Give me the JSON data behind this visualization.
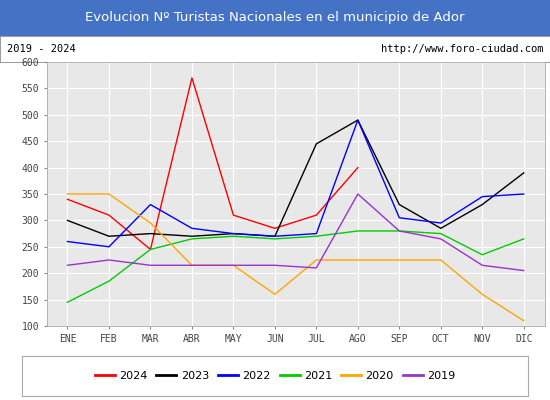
{
  "title": "Evolucion Nº Turistas Nacionales en el municipio de Ador",
  "subtitle_left": "2019 - 2024",
  "subtitle_right": "http://www.foro-ciudad.com",
  "title_bg_color": "#4472c4",
  "title_text_color": "#ffffff",
  "subtitle_bg_color": "#ffffff",
  "plot_bg_color": "#e8e8e8",
  "months": [
    "ENE",
    "FEB",
    "MAR",
    "ABR",
    "MAY",
    "JUN",
    "JUL",
    "AGO",
    "SEP",
    "OCT",
    "NOV",
    "DIC"
  ],
  "ylim": [
    100,
    600
  ],
  "yticks": [
    100,
    150,
    200,
    250,
    300,
    350,
    400,
    450,
    500,
    550,
    600
  ],
  "series": {
    "2024": {
      "color": "#ff0000",
      "data": [
        340,
        310,
        245,
        570,
        310,
        285,
        310,
        400,
        null,
        null,
        null,
        null
      ]
    },
    "2023": {
      "color": "#000000",
      "data": [
        300,
        270,
        275,
        270,
        275,
        270,
        445,
        490,
        330,
        285,
        330,
        390
      ]
    },
    "2022": {
      "color": "#0000ff",
      "data": [
        260,
        250,
        330,
        285,
        275,
        270,
        275,
        490,
        305,
        295,
        345,
        350
      ]
    },
    "2021": {
      "color": "#00cc00",
      "data": [
        145,
        185,
        245,
        265,
        270,
        265,
        270,
        280,
        280,
        275,
        235,
        265
      ]
    },
    "2020": {
      "color": "#ffa500",
      "data": [
        350,
        350,
        295,
        215,
        215,
        160,
        225,
        225,
        225,
        225,
        160,
        110
      ]
    },
    "2019": {
      "color": "#9933cc",
      "data": [
        215,
        225,
        215,
        215,
        215,
        215,
        210,
        350,
        280,
        265,
        215,
        205
      ]
    }
  },
  "legend_order": [
    "2024",
    "2023",
    "2022",
    "2021",
    "2020",
    "2019"
  ],
  "grid_color": "#ffffff",
  "tick_color": "#444444"
}
